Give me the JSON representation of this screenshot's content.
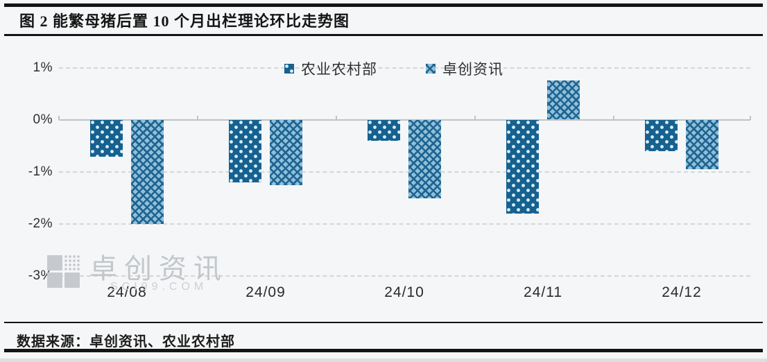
{
  "figure": {
    "title": "图 2   能繁母猪后置 10 个月出栏理论环比走势图",
    "source_line": "数据来源：卓创资讯、农业农村部"
  },
  "watermark": {
    "text": "卓创资讯",
    "subtext": "SCI99.COM"
  },
  "colors": {
    "series1_dark_blue": "#16618f",
    "series2_light_blue": "#8fc0da",
    "series2_hatch_blue": "#1f6390",
    "gridline_gray": "#d3d6d9",
    "axis_gray": "#bfc3c6",
    "watermark_gray": "#c3c7cb",
    "background": "#f5f6f7"
  },
  "chart_data": {
    "type": "bar",
    "categories": [
      "24/08",
      "24/09",
      "24/10",
      "24/11",
      "24/12"
    ],
    "series": [
      {
        "name": "农业农村部",
        "pattern": "dots",
        "color": "#16618f",
        "values": [
          -0.7,
          -1.2,
          -0.4,
          -1.8,
          -0.6
        ]
      },
      {
        "name": "卓创资讯",
        "pattern": "cross",
        "color": "#8fc0da",
        "values": [
          -2.0,
          -1.25,
          -1.5,
          0.75,
          -0.95
        ]
      }
    ],
    "y_ticks": [
      "1%",
      "0%",
      "-1%",
      "-2%",
      "-3%"
    ],
    "ylim": [
      -3,
      1
    ],
    "y_unit": "%",
    "grid": "horizontal-dashed, solid zero axis",
    "legend_position": "top-center"
  }
}
